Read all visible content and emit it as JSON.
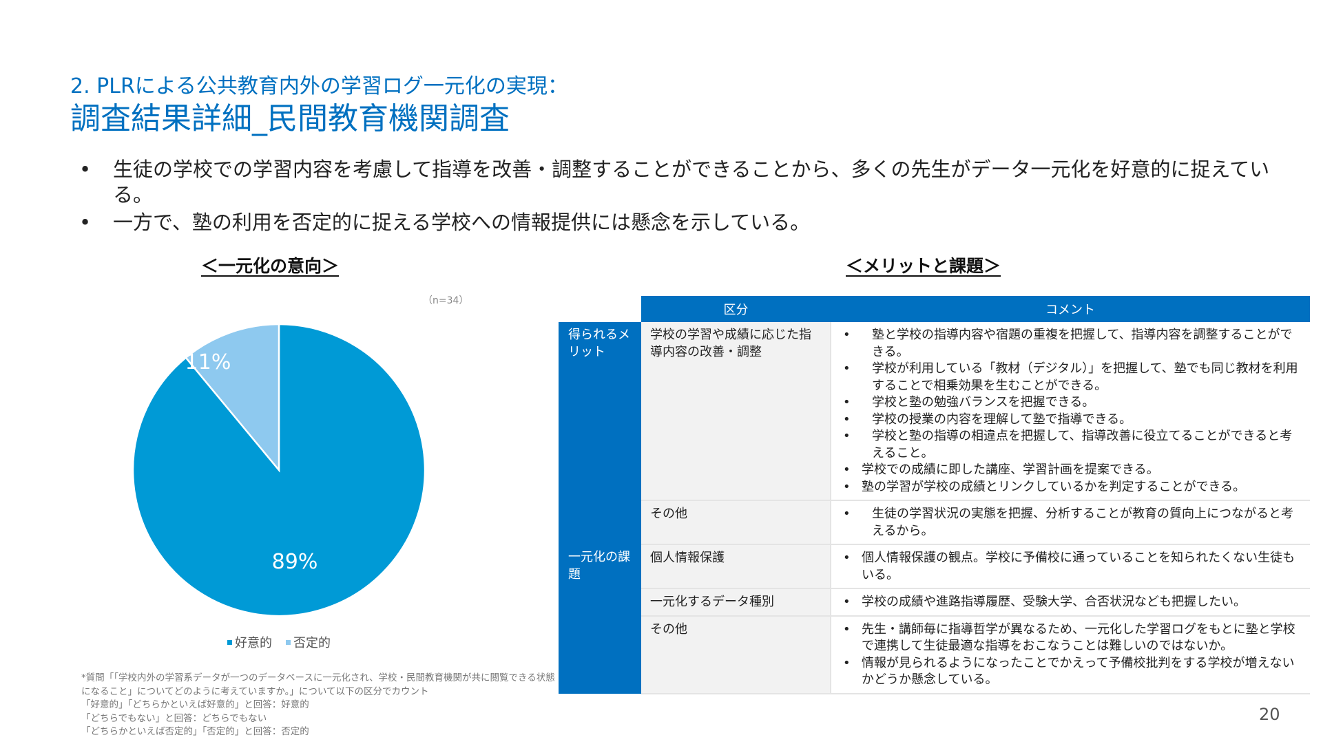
{
  "header": {
    "subtitle": "2. PLRによる公共教育内外の学習ログ一元化の実現：",
    "title": "調査結果詳細_民間教育機関調査"
  },
  "bullets": [
    "生徒の学校での学習内容を考慮して指導を改善・調整することができることから、多くの先生がデータ一元化を好意的に捉えている。",
    "一方で、塾の利用を否定的に捉える学校への情報提供には懸念を示している。"
  ],
  "bullet_symbol": "•",
  "left_section": {
    "heading": "＜一元化の意向＞",
    "n_label": "（n=34）"
  },
  "chart_data": {
    "type": "pie",
    "title": "＜一元化の意向＞",
    "n": "（n=34）",
    "slices": [
      {
        "name": "好意的",
        "value": 89,
        "label": "89%",
        "color": "#009ad6"
      },
      {
        "name": "否定的",
        "value": 11,
        "label": "11%",
        "color": "#8ec9ef"
      }
    ],
    "legend_position": "bottom"
  },
  "footnote": [
    "*質問「「学校内外の学習系データが一つのデータベースに一元化され、学校・民間教育機関が共に閲覧できる状態になること」についてどのように考えていますか。」について以下の区分でカウント",
    "「好意的」「どちらかといえば好意的」と回答：好意的",
    "「どちらでもない」と回答：どちらでもない",
    "「どちらかといえば否定的」「否定的」と回答：否定的"
  ],
  "right_section": {
    "heading": "＜メリットと課題＞",
    "table": {
      "headers": [
        "区分",
        "コメント"
      ],
      "groups": [
        {
          "label": "得られるメリット",
          "rows": [
            {
              "category": "学校の学習や成績に応じた指導内容の改善・調整",
              "comments": [
                {
                  "text": "塾と学校の指導内容や宿題の重複を把握して、指導内容を調整することができる。",
                  "indent": 1
                },
                {
                  "text": "学校が利用している「教材（デジタル）」を把握して、塾でも同じ教材を利用することで相乗効果を生むことができる。",
                  "indent": 1
                },
                {
                  "text": "学校と塾の勉強バランスを把握できる。",
                  "indent": 1
                },
                {
                  "text": "学校の授業の内容を理解して塾で指導できる。",
                  "indent": 1
                },
                {
                  "text": "学校と塾の指導の相違点を把握して、指導改善に役立てることができると考えること。",
                  "indent": 1
                },
                {
                  "text": "学校での成績に即した講座、学習計画を提案できる。",
                  "indent": 2
                },
                {
                  "text": "塾の学習が学校の成績とリンクしているかを判定することができる。",
                  "indent": 2
                }
              ]
            },
            {
              "category": "その他",
              "comments": [
                {
                  "text": "生徒の学習状況の実態を把握、分析することが教育の質向上につながると考えるから。",
                  "indent": 1
                }
              ]
            }
          ]
        },
        {
          "label": "一元化の課題",
          "rows": [
            {
              "category": "個人情報保護",
              "comments": [
                {
                  "text": "個人情報保護の観点。学校に予備校に通っていることを知られたくない生徒もいる。",
                  "indent": 2
                }
              ]
            },
            {
              "category": "一元化するデータ種別",
              "comments": [
                {
                  "text": "学校の成績や進路指導履歴、受験大学、合否状況なども把握したい。",
                  "indent": 2
                }
              ]
            },
            {
              "category": "その他",
              "comments": [
                {
                  "text": "先生・講師毎に指導哲学が異なるため、一元化した学習ログをもとに塾と学校で連携して生徒最適な指導をおこなうことは難しいのではないか。",
                  "indent": 2
                },
                {
                  "text": "情報が見られるようになったことでかえって予備校批判をする学校が増えないかどうか懸念している。",
                  "indent": 2
                }
              ]
            }
          ]
        }
      ]
    }
  },
  "page_number": "20",
  "colors": {
    "accent": "#0070c0",
    "pie_positive": "#009ad6",
    "pie_negative": "#8ec9ef"
  }
}
